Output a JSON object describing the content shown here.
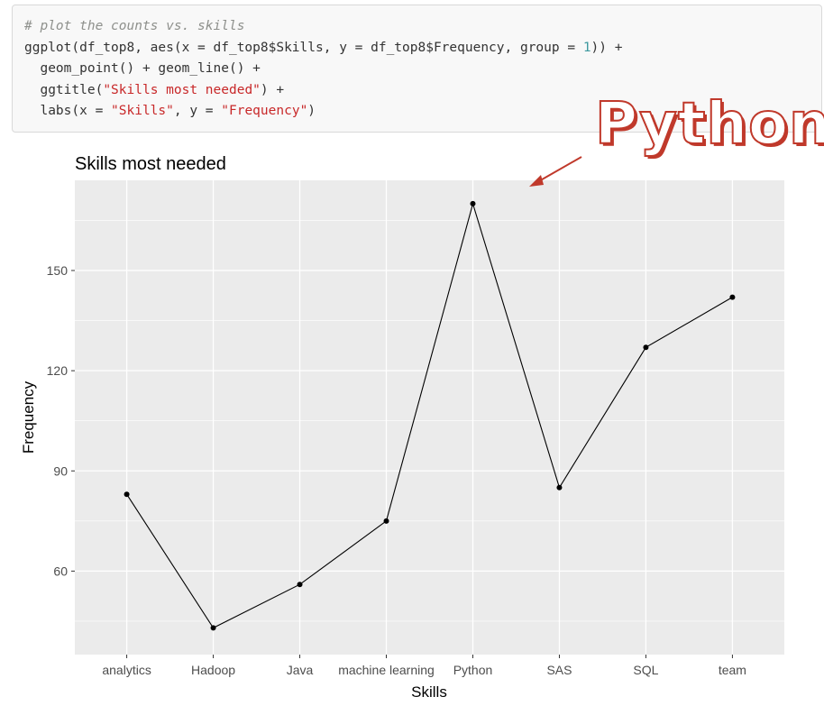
{
  "code": {
    "comment": "# plot the counts vs. skills",
    "line2": {
      "a": "ggplot(df_top8, aes(x = df_top8$Skills, y = df_top8$Frequency, group = ",
      "num": "1",
      "b": ")) +"
    },
    "line3": "  geom_point() + geom_line() +",
    "line4": {
      "a": "  ggtitle(",
      "str": "\"Skills most needed\"",
      "b": ") +"
    },
    "line5": {
      "a": "  labs(x = ",
      "str1": "\"Skills\"",
      "mid": ", y = ",
      "str2": "\"Frequency\"",
      "b": ")"
    }
  },
  "callout": {
    "text": "Python",
    "color": "#c0392b"
  },
  "chart_data": {
    "type": "line",
    "title": "Skills most needed",
    "xlabel": "Skills",
    "ylabel": "Frequency",
    "categories": [
      "analytics",
      "Hadoop",
      "Java",
      "machine learning",
      "Python",
      "SAS",
      "SQL",
      "team"
    ],
    "values": [
      83,
      43,
      56,
      75,
      170,
      85,
      127,
      142
    ],
    "ylim": [
      35,
      177
    ],
    "yticks": [
      60,
      90,
      120,
      150
    ],
    "grid": true,
    "panel_color": "#ebebeb",
    "line_color": "#000000"
  }
}
